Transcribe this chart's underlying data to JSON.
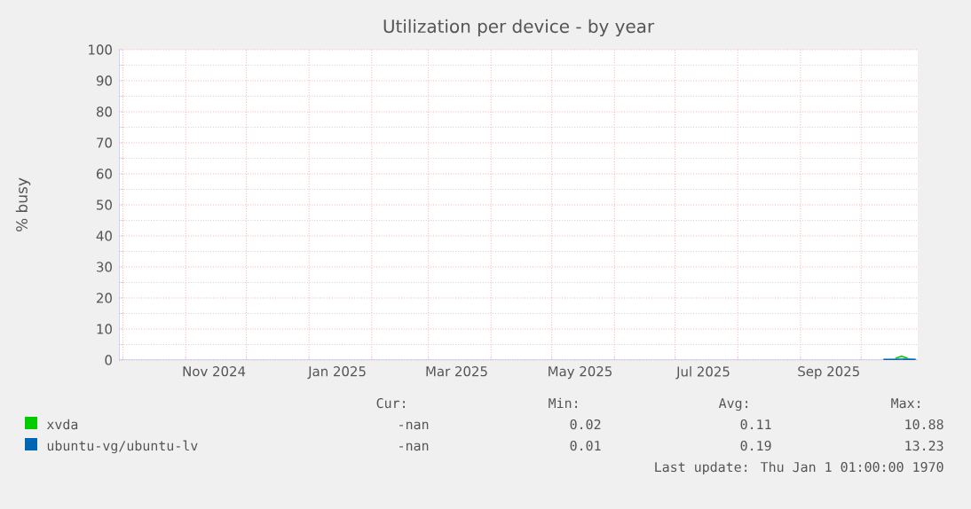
{
  "chart_data": {
    "type": "line",
    "title": "Utilization per device - by year",
    "ylabel": "% busy",
    "xlim": [
      "2024-09-29",
      "2025-10-29"
    ],
    "ylim": [
      0,
      100
    ],
    "yticks": [
      0,
      10,
      20,
      30,
      40,
      50,
      60,
      70,
      80,
      90,
      100
    ],
    "xticks": [
      {
        "value": "2024-10-01",
        "label": null
      },
      {
        "value": "2024-11-01",
        "label": null
      },
      {
        "value": "2024-12-01",
        "label": null
      },
      {
        "value": "2025-01-01",
        "label": null
      },
      {
        "value": "2025-02-01",
        "label": null
      },
      {
        "value": "2025-03-01",
        "label": null
      },
      {
        "value": "2025-04-01",
        "label": null
      },
      {
        "value": "2025-05-01",
        "label": null
      },
      {
        "value": "2025-06-01",
        "label": null
      },
      {
        "value": "2025-07-01",
        "label": null
      },
      {
        "value": "2025-08-01",
        "label": null
      },
      {
        "value": "2025-09-01",
        "label": null
      },
      {
        "value": "2025-10-01",
        "label": null
      },
      {
        "value": "2024-11-15",
        "label": "Nov 2024"
      },
      {
        "value": "2025-01-15",
        "label": "Jan 2025"
      },
      {
        "value": "2025-03-15",
        "label": "Mar 2025"
      },
      {
        "value": "2025-05-15",
        "label": "May 2025"
      },
      {
        "value": "2025-07-15",
        "label": "Jul 2025"
      },
      {
        "value": "2025-09-15",
        "label": "Sep 2025"
      }
    ],
    "grid": true,
    "legend": "bottom",
    "marker": "none",
    "line_style": "solid",
    "series": [
      {
        "name": "xvda",
        "color": "#00cc00",
        "x": [
          "2025-10-18",
          "2025-10-21",
          "2025-10-24"
        ],
        "values": [
          0.6,
          1.2,
          0.6
        ]
      },
      {
        "name": "ubuntu-vg/ubuntu-lv",
        "color": "#0066b3",
        "x": [
          "2025-10-12",
          "2025-10-16",
          "2025-10-25",
          "2025-10-28"
        ],
        "values": [
          0.2,
          0.2,
          0.3,
          0.2
        ]
      }
    ],
    "annotations": [
      "Cur:",
      "Min:",
      "Avg:",
      "Max:",
      "-nan",
      "0.02",
      "0.11",
      "10.88",
      "-nan",
      "0.01",
      "0.19",
      "13.23",
      "Last update: Thu Jan 1 01:00:00 1970"
    ]
  }
}
